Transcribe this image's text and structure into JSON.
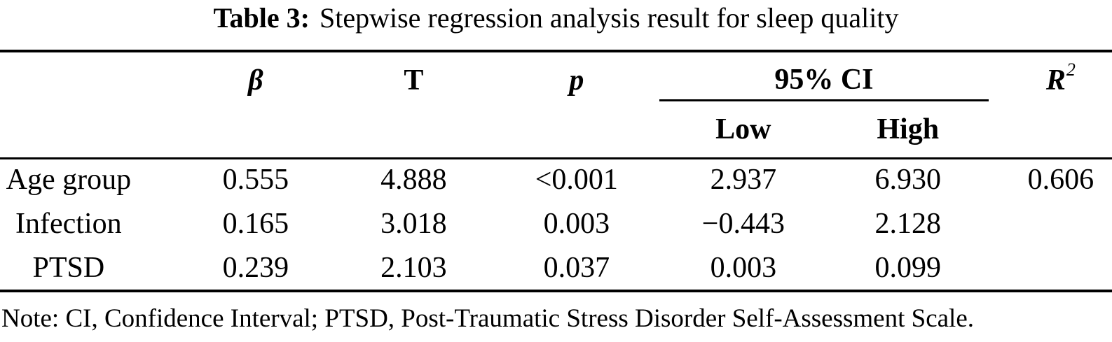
{
  "title": {
    "label": "Table 3:",
    "text": "Stepwise regression analysis result for sleep quality"
  },
  "table": {
    "header": {
      "beta": "β",
      "t": "T",
      "p": "p",
      "ci_group": "95% CI",
      "low": "Low",
      "high": "High",
      "r2_base": "R",
      "r2_sup": "2"
    },
    "rows": [
      {
        "label": "Age group",
        "beta": "0.555",
        "t": "4.888",
        "p": "<0.001",
        "low": "2.937",
        "high": "6.930",
        "r2": "0.606"
      },
      {
        "label": "Infection",
        "beta": "0.165",
        "t": "3.018",
        "p": "0.003",
        "low": "−0.443",
        "high": "2.128",
        "r2": ""
      },
      {
        "label": "PTSD",
        "beta": "0.239",
        "t": "2.103",
        "p": "0.037",
        "low": "0.003",
        "high": "0.099",
        "r2": ""
      }
    ]
  },
  "note": "Note: CI, Confidence Interval; PTSD, Post-Traumatic Stress Disorder Self-Assessment Scale.",
  "colors": {
    "text": "#000000",
    "background": "#ffffff",
    "rule": "#000000"
  }
}
